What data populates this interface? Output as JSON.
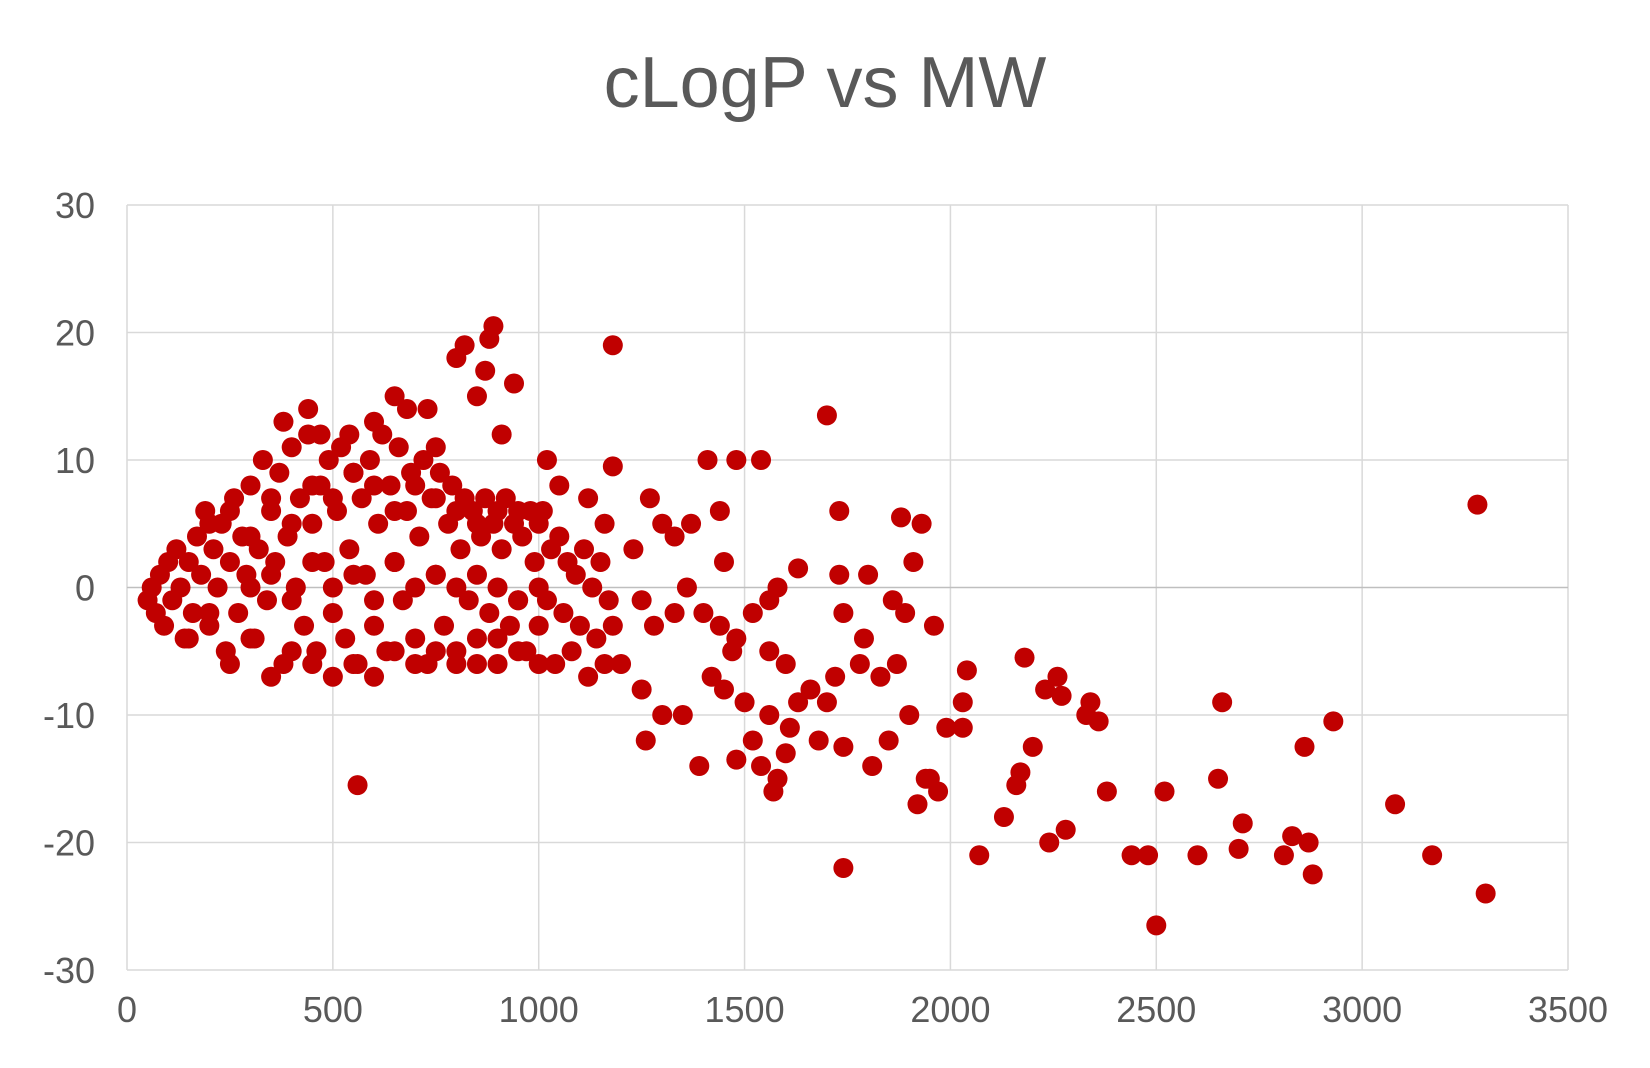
{
  "chart_data": {
    "type": "scatter",
    "title": "cLogP vs MW",
    "xlabel": "",
    "ylabel": "",
    "xlim": [
      0,
      3500
    ],
    "ylim": [
      -30,
      30
    ],
    "x_ticks": [
      "0",
      "500",
      "1000",
      "1500",
      "2000",
      "2500",
      "3000",
      "3500"
    ],
    "y_ticks": [
      "30",
      "20",
      "10",
      "0",
      "-10",
      "-20",
      "-30"
    ],
    "grid": true,
    "legend": "none",
    "marker_color": "#C00000",
    "series": [
      {
        "points": [
          [
            50,
            -1
          ],
          [
            60,
            0
          ],
          [
            70,
            -2
          ],
          [
            80,
            1
          ],
          [
            90,
            -3
          ],
          [
            100,
            2
          ],
          [
            110,
            -1
          ],
          [
            120,
            3
          ],
          [
            130,
            0
          ],
          [
            140,
            -4
          ],
          [
            150,
            2
          ],
          [
            160,
            -2
          ],
          [
            170,
            4
          ],
          [
            180,
            1
          ],
          [
            190,
            6
          ],
          [
            200,
            -3
          ],
          [
            210,
            3
          ],
          [
            220,
            0
          ],
          [
            230,
            5
          ],
          [
            240,
            -5
          ],
          [
            250,
            2
          ],
          [
            260,
            7
          ],
          [
            270,
            -2
          ],
          [
            280,
            4
          ],
          [
            290,
            1
          ],
          [
            300,
            8
          ],
          [
            310,
            -4
          ],
          [
            320,
            3
          ],
          [
            330,
            10
          ],
          [
            340,
            -1
          ],
          [
            350,
            6
          ],
          [
            360,
            2
          ],
          [
            370,
            9
          ],
          [
            380,
            -6
          ],
          [
            390,
            4
          ],
          [
            400,
            11
          ],
          [
            410,
            0
          ],
          [
            420,
            7
          ],
          [
            430,
            -3
          ],
          [
            440,
            12
          ],
          [
            450,
            5
          ],
          [
            460,
            -5
          ],
          [
            470,
            8
          ],
          [
            480,
            2
          ],
          [
            490,
            10
          ],
          [
            500,
            -2
          ],
          [
            510,
            6
          ],
          [
            520,
            11
          ],
          [
            530,
            -4
          ],
          [
            540,
            3
          ],
          [
            550,
            9
          ],
          [
            560,
            -6
          ],
          [
            570,
            7
          ],
          [
            580,
            1
          ],
          [
            590,
            10
          ],
          [
            600,
            -3
          ],
          [
            610,
            5
          ],
          [
            620,
            12
          ],
          [
            630,
            -5
          ],
          [
            640,
            8
          ],
          [
            650,
            2
          ],
          [
            660,
            11
          ],
          [
            670,
            -1
          ],
          [
            680,
            6
          ],
          [
            690,
            9
          ],
          [
            700,
            -4
          ],
          [
            710,
            4
          ],
          [
            720,
            10
          ],
          [
            730,
            -6
          ],
          [
            740,
            7
          ],
          [
            750,
            1
          ],
          [
            760,
            9
          ],
          [
            770,
            -3
          ],
          [
            780,
            5
          ],
          [
            790,
            8
          ],
          [
            800,
            -5
          ],
          [
            810,
            3
          ],
          [
            820,
            7
          ],
          [
            830,
            -1
          ],
          [
            840,
            6
          ],
          [
            850,
            -4
          ],
          [
            860,
            4
          ],
          [
            870,
            7
          ],
          [
            880,
            -2
          ],
          [
            890,
            5
          ],
          [
            900,
            -6
          ],
          [
            910,
            3
          ],
          [
            920,
            7
          ],
          [
            930,
            -3
          ],
          [
            940,
            5
          ],
          [
            950,
            -1
          ],
          [
            960,
            4
          ],
          [
            970,
            -5
          ],
          [
            980,
            6
          ],
          [
            990,
            2
          ],
          [
            1000,
            -3
          ],
          [
            1010,
            6
          ],
          [
            1020,
            -1
          ],
          [
            1030,
            3
          ],
          [
            1040,
            -6
          ],
          [
            1050,
            4
          ],
          [
            1060,
            -2
          ],
          [
            1070,
            2
          ],
          [
            1080,
            -5
          ],
          [
            1090,
            1
          ],
          [
            1100,
            -3
          ],
          [
            1110,
            3
          ],
          [
            1120,
            -7
          ],
          [
            1130,
            0
          ],
          [
            1140,
            -4
          ],
          [
            1150,
            2
          ],
          [
            1160,
            -6
          ],
          [
            1170,
            -1
          ],
          [
            1180,
            -3
          ],
          [
            150,
            -4
          ],
          [
            200,
            -2
          ],
          [
            250,
            -6
          ],
          [
            300,
            -4
          ],
          [
            350,
            -7
          ],
          [
            400,
            -5
          ],
          [
            450,
            -6
          ],
          [
            500,
            -7
          ],
          [
            550,
            -6
          ],
          [
            600,
            -7
          ],
          [
            650,
            -5
          ],
          [
            700,
            -6
          ],
          [
            750,
            -5
          ],
          [
            800,
            -6
          ],
          [
            850,
            -6
          ],
          [
            900,
            -4
          ],
          [
            950,
            -5
          ],
          [
            1000,
            -6
          ],
          [
            200,
            5
          ],
          [
            250,
            6
          ],
          [
            300,
            4
          ],
          [
            350,
            7
          ],
          [
            400,
            5
          ],
          [
            450,
            8
          ],
          [
            500,
            7
          ],
          [
            550,
            9
          ],
          [
            600,
            8
          ],
          [
            650,
            6
          ],
          [
            700,
            8
          ],
          [
            750,
            7
          ],
          [
            800,
            6
          ],
          [
            850,
            5
          ],
          [
            900,
            6
          ],
          [
            950,
            6
          ],
          [
            1000,
            5
          ],
          [
            300,
            0
          ],
          [
            350,
            1
          ],
          [
            400,
            -1
          ],
          [
            450,
            2
          ],
          [
            500,
            0
          ],
          [
            550,
            1
          ],
          [
            600,
            -1
          ],
          [
            650,
            2
          ],
          [
            700,
            0
          ],
          [
            750,
            1
          ],
          [
            800,
            0
          ],
          [
            850,
            1
          ],
          [
            900,
            0
          ],
          [
            950,
            -1
          ],
          [
            1000,
            0
          ],
          [
            380,
            13
          ],
          [
            440,
            14
          ],
          [
            470,
            12
          ],
          [
            540,
            12
          ],
          [
            560,
            -15.5
          ],
          [
            600,
            13
          ],
          [
            650,
            15
          ],
          [
            680,
            14
          ],
          [
            730,
            14
          ],
          [
            750,
            11
          ],
          [
            800,
            18
          ],
          [
            820,
            19
          ],
          [
            850,
            15
          ],
          [
            870,
            17
          ],
          [
            880,
            19.5
          ],
          [
            890,
            20.5
          ],
          [
            910,
            12
          ],
          [
            940,
            16
          ],
          [
            1020,
            10
          ],
          [
            1050,
            8
          ],
          [
            1120,
            7
          ],
          [
            1160,
            5
          ],
          [
            1180,
            19
          ],
          [
            1180,
            9.5
          ],
          [
            1230,
            3
          ],
          [
            1270,
            7
          ],
          [
            1300,
            5
          ],
          [
            1330,
            4
          ],
          [
            1370,
            5
          ],
          [
            1410,
            10
          ],
          [
            1440,
            6
          ],
          [
            1450,
            2
          ],
          [
            1480,
            10
          ],
          [
            1540,
            10
          ],
          [
            1560,
            -1
          ],
          [
            1580,
            0
          ],
          [
            1630,
            1.5
          ],
          [
            1200,
            -6
          ],
          [
            1250,
            -8
          ],
          [
            1260,
            -12
          ],
          [
            1300,
            -10
          ],
          [
            1350,
            -10
          ],
          [
            1390,
            -14
          ],
          [
            1420,
            -7
          ],
          [
            1450,
            -8
          ],
          [
            1470,
            -5
          ],
          [
            1480,
            -13.5
          ],
          [
            1500,
            -9
          ],
          [
            1520,
            -12
          ],
          [
            1540,
            -14
          ],
          [
            1560,
            -10
          ],
          [
            1570,
            -16
          ],
          [
            1580,
            -15
          ],
          [
            1600,
            -13
          ],
          [
            1610,
            -11
          ],
          [
            1630,
            -9
          ],
          [
            1660,
            -8
          ],
          [
            1680,
            -12
          ],
          [
            1700,
            -9
          ],
          [
            1720,
            -7
          ],
          [
            1740,
            -12.5
          ],
          [
            1250,
            -1
          ],
          [
            1280,
            -3
          ],
          [
            1330,
            -2
          ],
          [
            1360,
            0
          ],
          [
            1400,
            -2
          ],
          [
            1440,
            -3
          ],
          [
            1480,
            -4
          ],
          [
            1520,
            -2
          ],
          [
            1560,
            -5
          ],
          [
            1600,
            -6
          ],
          [
            1700,
            13.5
          ],
          [
            1730,
            6
          ],
          [
            1730,
            1
          ],
          [
            1740,
            -2
          ],
          [
            1740,
            -22
          ],
          [
            1780,
            -6
          ],
          [
            1790,
            -4
          ],
          [
            1800,
            1
          ],
          [
            1810,
            -14
          ],
          [
            1830,
            -7
          ],
          [
            1850,
            -12
          ],
          [
            1860,
            -1
          ],
          [
            1870,
            -6
          ],
          [
            1880,
            5.5
          ],
          [
            1890,
            -2
          ],
          [
            1900,
            -10
          ],
          [
            1910,
            2
          ],
          [
            1920,
            -17
          ],
          [
            1930,
            5
          ],
          [
            1940,
            -15
          ],
          [
            1950,
            -15
          ],
          [
            1960,
            -3
          ],
          [
            1970,
            -16
          ],
          [
            1990,
            -11
          ],
          [
            2030,
            -9
          ],
          [
            2030,
            -11
          ],
          [
            2040,
            -6.5
          ],
          [
            2070,
            -21
          ],
          [
            2130,
            -18
          ],
          [
            2160,
            -15.5
          ],
          [
            2170,
            -14.5
          ],
          [
            2180,
            -5.5
          ],
          [
            2200,
            -12.5
          ],
          [
            2230,
            -8
          ],
          [
            2240,
            -20
          ],
          [
            2260,
            -7
          ],
          [
            2270,
            -8.5
          ],
          [
            2280,
            -19
          ],
          [
            2330,
            -10
          ],
          [
            2340,
            -9
          ],
          [
            2360,
            -10.5
          ],
          [
            2380,
            -16
          ],
          [
            2440,
            -21
          ],
          [
            2480,
            -21
          ],
          [
            2500,
            -26.5
          ],
          [
            2520,
            -16
          ],
          [
            2600,
            -21
          ],
          [
            2650,
            -15
          ],
          [
            2660,
            -9
          ],
          [
            2700,
            -20.5
          ],
          [
            2710,
            -18.5
          ],
          [
            2810,
            -21
          ],
          [
            2830,
            -19.5
          ],
          [
            2860,
            -12.5
          ],
          [
            2870,
            -20
          ],
          [
            2880,
            -22.5
          ],
          [
            2930,
            -10.5
          ],
          [
            3080,
            -17
          ],
          [
            3170,
            -21
          ],
          [
            3280,
            6.5
          ],
          [
            3300,
            -24
          ]
        ]
      }
    ]
  }
}
